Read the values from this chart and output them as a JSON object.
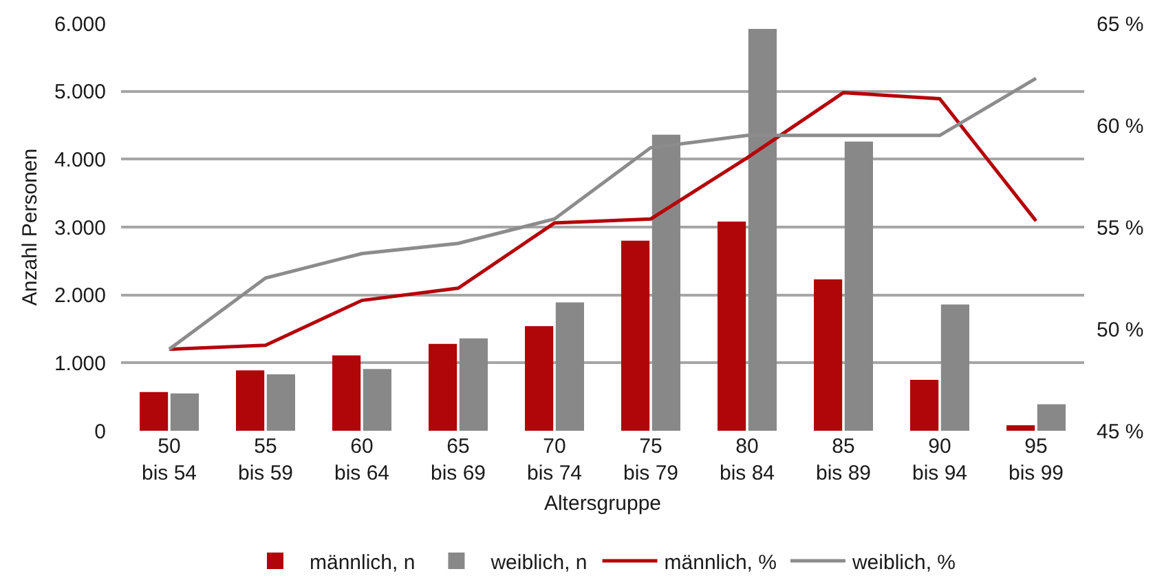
{
  "chart_data": {
    "type": "bar",
    "xlabel": "Altersgruppe",
    "ylabel": "Anzahl Personen",
    "categories": [
      "50\nbis 54",
      "55\nbis 59",
      "60\nbis 64",
      "65\nbis 69",
      "70\nbis 74",
      "75\nbis 79",
      "80\nbis 84",
      "85\nbis 89",
      "90\nbis 94",
      "95\nbis 99"
    ],
    "series": [
      {
        "name": "männlich, n",
        "color": "#b00509",
        "values": [
          570,
          890,
          1110,
          1280,
          1540,
          2800,
          3080,
          2230,
          750,
          80
        ]
      },
      {
        "name": "weiblich, n",
        "color": "#888888",
        "values": [
          550,
          830,
          910,
          1360,
          1890,
          4360,
          5920,
          4260,
          1860,
          390
        ]
      },
      {
        "name": "männlich, %",
        "type": "line",
        "axis": "y2",
        "color": "#b5050a",
        "values": [
          49.0,
          49.2,
          51.4,
          52.0,
          55.2,
          55.4,
          58.4,
          61.6,
          61.3,
          55.3
        ]
      },
      {
        "name": "weiblich, %",
        "type": "line",
        "axis": "y2",
        "color": "#8c8c8c",
        "values": [
          49.0,
          52.5,
          53.7,
          54.2,
          55.4,
          58.9,
          59.5,
          59.5,
          59.5,
          62.3
        ]
      }
    ],
    "ylim": [
      0,
      6000
    ],
    "yticks": [
      0,
      {
        "value": 1000,
        "label": "1.000"
      },
      {
        "value": 2000,
        "label": "2.000"
      },
      {
        "value": 3000,
        "label": "3.000"
      },
      {
        "value": 4000,
        "label": "4.000"
      },
      {
        "value": 5000,
        "label": "5.000"
      },
      {
        "value": 6000,
        "label": "6.000"
      }
    ],
    "y2lim": [
      45,
      65
    ],
    "y2ticks": [
      {
        "value": 45,
        "label": "45 %"
      },
      {
        "value": 50,
        "label": "50 %"
      },
      {
        "value": 55,
        "label": "55 %"
      },
      {
        "value": 60,
        "label": "60 %"
      },
      {
        "value": 65,
        "label": "65 %"
      }
    ],
    "grid": "y",
    "legend": "bottom",
    "line_style": "solid"
  }
}
